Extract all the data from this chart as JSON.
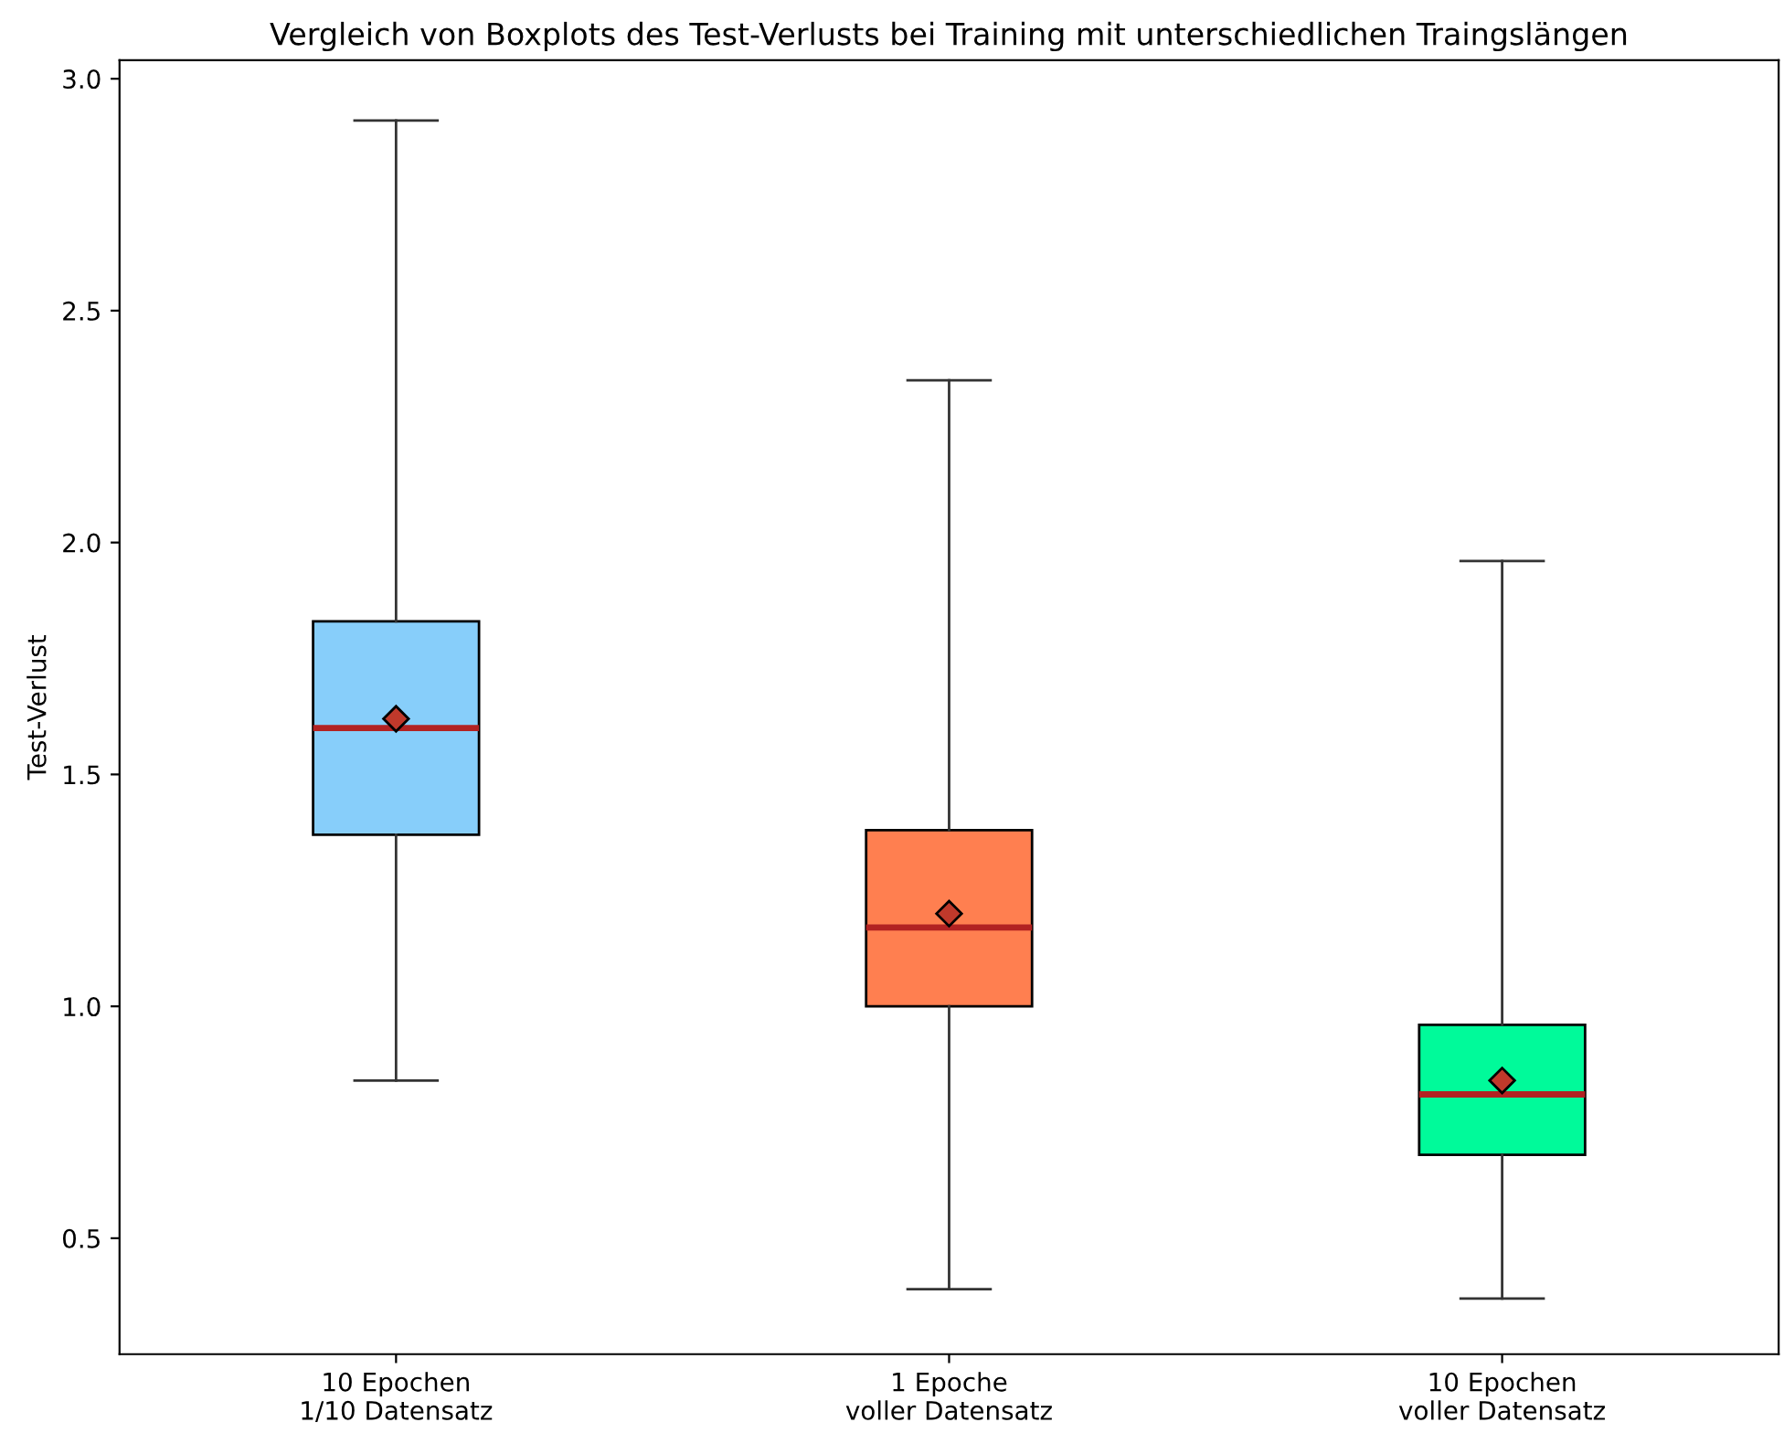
{
  "chart_data": {
    "type": "box",
    "title": "Vergleich von Boxplots des Test-Verlusts bei Training mit unterschiedlichen Traingslängen",
    "ylabel": "Test-Verlust",
    "categories": [
      "10 Epochen\n1/10 Datensatz",
      "1 Epoche\nvoller Datensatz",
      "10 Epochen\nvoller Datensatz"
    ],
    "colors": [
      "#87cefa",
      "#ff7f50",
      "#00fa9a"
    ],
    "boxes": [
      {
        "low": 0.84,
        "q1": 1.37,
        "median": 1.6,
        "q3": 1.83,
        "high": 2.91,
        "mean": 1.62
      },
      {
        "low": 0.39,
        "q1": 1.0,
        "median": 1.17,
        "q3": 1.38,
        "high": 2.35,
        "mean": 1.2
      },
      {
        "low": 0.37,
        "q1": 0.68,
        "median": 0.81,
        "q3": 0.96,
        "high": 1.96,
        "mean": 0.84
      }
    ],
    "ylim": [
      0.25,
      3.04
    ],
    "yticks": [
      {
        "value": 0.5,
        "label": "0.5"
      },
      {
        "value": 1.0,
        "label": "1.0"
      },
      {
        "value": 1.5,
        "label": "1.5"
      },
      {
        "value": 2.0,
        "label": "2.0"
      },
      {
        "value": 2.5,
        "label": "2.5"
      },
      {
        "value": 3.0,
        "label": "3.0"
      }
    ],
    "grid": false,
    "legend": false
  }
}
